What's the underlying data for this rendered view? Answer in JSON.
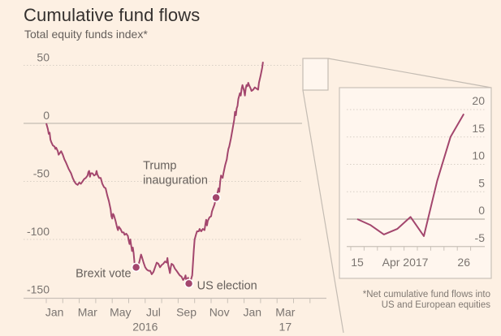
{
  "header": {
    "title": "Cumulative fund flows",
    "subtitle": "Total equity funds index*"
  },
  "footnote": {
    "line1": "*Net cumulative fund flows into",
    "line2": "US and European equities"
  },
  "colors": {
    "background": "#fdf0e3",
    "line": "#a3466d",
    "axis": "#c9c1b8",
    "grid": "#d8cfc5",
    "inset_bg": "#fff6ee"
  },
  "chart_data": [
    {
      "type": "line",
      "title": "Cumulative fund flows",
      "subtitle": "Total equity funds index*",
      "xlabel": "",
      "ylabel": "",
      "x_unit": "months since Jan 2016",
      "xlim": [
        0,
        16.2
      ],
      "ylim": [
        -150,
        55
      ],
      "yticks": [
        50,
        0,
        -50,
        -100,
        -150
      ],
      "ytick_labels": [
        "50",
        "0",
        "-50",
        "-100",
        "-150"
      ],
      "xtick_months": [
        0,
        1,
        2,
        3,
        4,
        5,
        6,
        7,
        8,
        9,
        10,
        11,
        12,
        13,
        14,
        15,
        16
      ],
      "xtick_labels": [
        {
          "at": 0.5,
          "label": "Jan"
        },
        {
          "at": 2.5,
          "label": "Mar"
        },
        {
          "at": 4.5,
          "label": "May"
        },
        {
          "at": 6.5,
          "label": "Jul"
        },
        {
          "at": 8.5,
          "label": "Sep"
        },
        {
          "at": 10.5,
          "label": "Nov"
        },
        {
          "at": 12.5,
          "label": "Jan"
        },
        {
          "at": 14.5,
          "label": "Mar"
        }
      ],
      "year_labels": [
        {
          "at": 6.0,
          "label": "2016"
        },
        {
          "at": 14.5,
          "label": "17"
        }
      ],
      "grid": true,
      "series": [
        {
          "name": "Total equity funds index",
          "points": [
            [
              0.0,
              0
            ],
            [
              0.1,
              -5
            ],
            [
              0.15,
              -9
            ],
            [
              0.2,
              -8
            ],
            [
              0.25,
              -14
            ],
            [
              0.3,
              -16
            ],
            [
              0.4,
              -19
            ],
            [
              0.5,
              -20
            ],
            [
              0.55,
              -22
            ],
            [
              0.6,
              -21
            ],
            [
              0.7,
              -24
            ],
            [
              0.75,
              -27
            ],
            [
              0.85,
              -25
            ],
            [
              0.9,
              -24
            ],
            [
              1.0,
              -27
            ],
            [
              1.1,
              -31
            ],
            [
              1.2,
              -34
            ],
            [
              1.35,
              -39
            ],
            [
              1.5,
              -43
            ],
            [
              1.6,
              -47
            ],
            [
              1.7,
              -50
            ],
            [
              1.8,
              -52
            ],
            [
              1.9,
              -53
            ],
            [
              2.0,
              -51
            ],
            [
              2.1,
              -52
            ],
            [
              2.2,
              -50
            ],
            [
              2.3,
              -48
            ],
            [
              2.4,
              -47
            ],
            [
              2.5,
              -45
            ],
            [
              2.55,
              -42
            ],
            [
              2.6,
              -41
            ],
            [
              2.65,
              -46
            ],
            [
              2.7,
              -43
            ],
            [
              2.8,
              -43
            ],
            [
              2.9,
              -45
            ],
            [
              3.0,
              -44
            ],
            [
              3.05,
              -41
            ],
            [
              3.1,
              -44
            ],
            [
              3.2,
              -47
            ],
            [
              3.3,
              -47
            ],
            [
              3.4,
              -52
            ],
            [
              3.5,
              -55
            ],
            [
              3.6,
              -56
            ],
            [
              3.7,
              -62
            ],
            [
              3.8,
              -67
            ],
            [
              3.9,
              -74
            ],
            [
              3.95,
              -80
            ],
            [
              4.0,
              -82
            ],
            [
              4.05,
              -78
            ],
            [
              4.1,
              -79
            ],
            [
              4.2,
              -84
            ],
            [
              4.3,
              -90
            ],
            [
              4.35,
              -92
            ],
            [
              4.4,
              -89
            ],
            [
              4.5,
              -91
            ],
            [
              4.6,
              -94
            ],
            [
              4.7,
              -94
            ],
            [
              4.75,
              -96
            ],
            [
              4.85,
              -95
            ],
            [
              4.95,
              -97
            ],
            [
              5.0,
              -101
            ],
            [
              5.05,
              -104
            ],
            [
              5.1,
              -100
            ],
            [
              5.15,
              -105
            ],
            [
              5.2,
              -110
            ],
            [
              5.25,
              -107
            ],
            [
              5.3,
              -112
            ],
            [
              5.35,
              -120
            ],
            [
              5.45,
              -124
            ],
            [
              5.55,
              -124
            ],
            [
              5.65,
              -119
            ],
            [
              5.75,
              -113
            ],
            [
              5.8,
              -115
            ],
            [
              5.9,
              -120
            ],
            [
              6.0,
              -124
            ],
            [
              6.1,
              -126
            ],
            [
              6.2,
              -127
            ],
            [
              6.3,
              -127
            ],
            [
              6.4,
              -130
            ],
            [
              6.5,
              -128
            ],
            [
              6.6,
              -124
            ],
            [
              6.7,
              -120
            ],
            [
              6.8,
              -121
            ],
            [
              6.9,
              -124
            ],
            [
              7.0,
              -122
            ],
            [
              7.1,
              -121
            ],
            [
              7.2,
              -119
            ],
            [
              7.3,
              -120
            ],
            [
              7.35,
              -116
            ],
            [
              7.4,
              -122
            ],
            [
              7.5,
              -129
            ],
            [
              7.55,
              -124
            ],
            [
              7.6,
              -121
            ],
            [
              7.7,
              -122
            ],
            [
              7.8,
              -125
            ],
            [
              7.9,
              -127
            ],
            [
              8.0,
              -129
            ],
            [
              8.1,
              -131
            ],
            [
              8.2,
              -132
            ],
            [
              8.3,
              -135
            ],
            [
              8.4,
              -133
            ],
            [
              8.45,
              -131
            ],
            [
              8.5,
              -136
            ],
            [
              8.6,
              -133
            ],
            [
              8.65,
              -138
            ],
            [
              8.75,
              -136
            ],
            [
              8.85,
              -131
            ],
            [
              8.9,
              -120
            ],
            [
              8.95,
              -109
            ],
            [
              9.0,
              -100
            ],
            [
              9.1,
              -95
            ],
            [
              9.15,
              -93
            ],
            [
              9.25,
              -93
            ],
            [
              9.3,
              -91
            ],
            [
              9.4,
              -93
            ],
            [
              9.5,
              -91
            ],
            [
              9.6,
              -92
            ],
            [
              9.65,
              -87
            ],
            [
              9.7,
              -83
            ],
            [
              9.75,
              -88
            ],
            [
              9.8,
              -84
            ],
            [
              9.9,
              -81
            ],
            [
              10.0,
              -80
            ],
            [
              10.05,
              -76
            ],
            [
              10.1,
              -74
            ],
            [
              10.2,
              -70
            ],
            [
              10.3,
              -64
            ],
            [
              10.35,
              -62
            ],
            [
              10.45,
              -56
            ],
            [
              10.5,
              -59
            ],
            [
              10.55,
              -50
            ],
            [
              10.6,
              -45
            ],
            [
              10.7,
              -47
            ],
            [
              10.75,
              -43
            ],
            [
              10.85,
              -36
            ],
            [
              10.95,
              -31
            ],
            [
              11.0,
              -26
            ],
            [
              11.05,
              -22
            ],
            [
              11.1,
              -20
            ],
            [
              11.2,
              -13
            ],
            [
              11.3,
              -5
            ],
            [
              11.4,
              3
            ],
            [
              11.45,
              10
            ],
            [
              11.5,
              7
            ],
            [
              11.55,
              13
            ],
            [
              11.6,
              15
            ],
            [
              11.65,
              21
            ],
            [
              11.75,
              26
            ],
            [
              11.8,
              24
            ],
            [
              11.85,
              30
            ],
            [
              11.9,
              33
            ],
            [
              12.0,
              28
            ],
            [
              12.05,
              24
            ],
            [
              12.1,
              30
            ],
            [
              12.15,
              33
            ],
            [
              12.2,
              32
            ],
            [
              12.25,
              35
            ],
            [
              12.3,
              33
            ],
            [
              12.4,
              30
            ],
            [
              12.45,
              28
            ],
            [
              12.55,
              29
            ],
            [
              12.65,
              31
            ],
            [
              12.75,
              30
            ],
            [
              12.85,
              29
            ],
            [
              12.9,
              35
            ],
            [
              13.0,
              41
            ],
            [
              13.1,
              48
            ],
            [
              13.15,
              53
            ]
          ]
        }
      ],
      "annotations": [
        {
          "label": "Brexit vote",
          "x": 5.45,
          "y": -124
        },
        {
          "label": "US election",
          "x": 8.65,
          "y": -138
        },
        {
          "label": "Trump inauguration",
          "x": 10.3,
          "y": -64
        }
      ],
      "legend": "none"
    },
    {
      "type": "line",
      "title": "Inset: April 2017 detail",
      "xlabel": "",
      "ylabel": "",
      "ylim": [
        -5,
        20
      ],
      "yticks": [
        20,
        15,
        10,
        5,
        0,
        -5
      ],
      "ytick_labels": [
        "20",
        "15",
        "10",
        "5",
        "0",
        "-5"
      ],
      "tick_count": 10,
      "xtick_labels": [
        {
          "at": 0,
          "label": "15"
        },
        {
          "at": 3.6,
          "label": "Apr 2017"
        },
        {
          "at": 8,
          "label": "26"
        }
      ],
      "grid": true,
      "series": [
        {
          "name": "Total equity funds index",
          "values": [
            0,
            -1.1,
            -2.8,
            -1.8,
            0.4,
            -3.1,
            7.0,
            15.0,
            19.2
          ]
        }
      ],
      "legend": "none"
    }
  ]
}
